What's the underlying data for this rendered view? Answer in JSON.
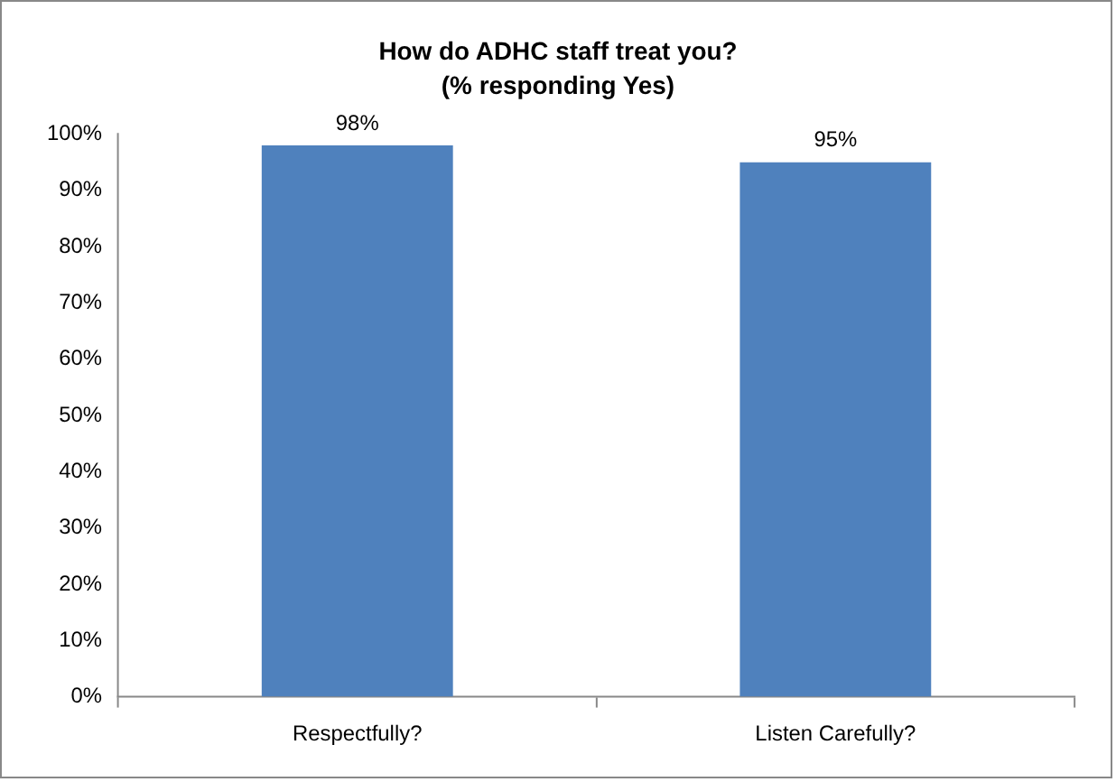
{
  "chart_data": {
    "type": "bar",
    "title": "How do ADHC staff treat you?",
    "subtitle": "(% responding Yes)",
    "categories": [
      "Respectfully?",
      "Listen Carefully?"
    ],
    "values": [
      98,
      95
    ],
    "color": "#4f81bd",
    "value_labels": [
      "98%",
      "95%"
    ],
    "ylim": [
      0,
      100
    ],
    "yticks": [
      {
        "value": 0,
        "label": "0%"
      },
      {
        "value": 10,
        "label": "10%"
      },
      {
        "value": 20,
        "label": "20%"
      },
      {
        "value": 30,
        "label": "30%"
      },
      {
        "value": 40,
        "label": "40%"
      },
      {
        "value": 50,
        "label": "50%"
      },
      {
        "value": 60,
        "label": "60%"
      },
      {
        "value": 70,
        "label": "70%"
      },
      {
        "value": 80,
        "label": "80%"
      },
      {
        "value": 90,
        "label": "90%"
      },
      {
        "value": 100,
        "label": "100%"
      }
    ],
    "grid": false,
    "legend": false
  }
}
